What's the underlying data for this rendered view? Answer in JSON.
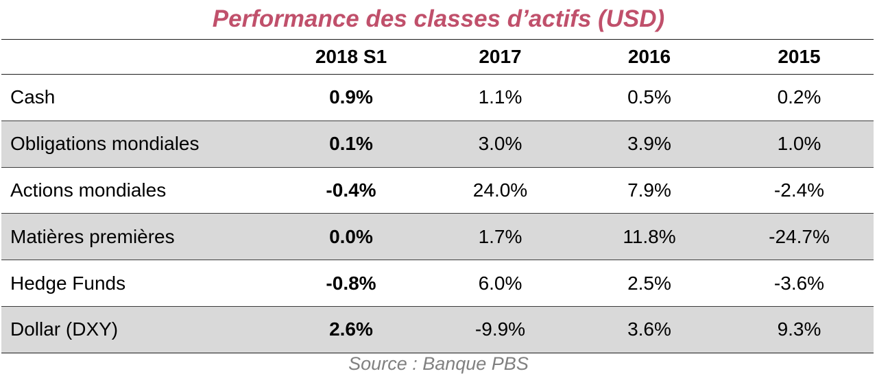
{
  "colors": {
    "title": "#c0506b",
    "shade": "#d9d9d9",
    "source": "#808080"
  },
  "chart_data": {
    "type": "table",
    "title": "Performance des classes d’actifs (USD)",
    "columns": [
      "",
      "2018 S1",
      "2017",
      "2016",
      "2015"
    ],
    "rows": [
      {
        "label": "Cash",
        "values": [
          "0.9%",
          "1.1%",
          "0.5%",
          "0.2%"
        ]
      },
      {
        "label": "Obligations mondiales",
        "values": [
          "0.1%",
          "3.0%",
          "3.9%",
          "1.0%"
        ]
      },
      {
        "label": "Actions mondiales",
        "values": [
          "-0.4%",
          "24.0%",
          "7.9%",
          "-2.4%"
        ]
      },
      {
        "label": "Matières premières",
        "values": [
          "0.0%",
          "1.7%",
          "11.8%",
          "-24.7%"
        ]
      },
      {
        "label": "Hedge Funds",
        "values": [
          "-0.8%",
          "6.0%",
          "2.5%",
          "-3.6%"
        ]
      },
      {
        "label": "Dollar (DXY)",
        "values": [
          "2.6%",
          "-9.9%",
          "3.6%",
          "9.3%"
        ]
      }
    ],
    "source": "Source : Banque PBS"
  }
}
